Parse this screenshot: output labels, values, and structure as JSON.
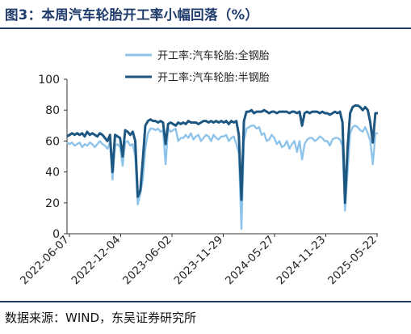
{
  "title": "图3：本周汽车轮胎开工率小幅回落（%）",
  "source": "数据来源：WIND，东吴证券研究所",
  "chart_data": {
    "type": "line",
    "ylim": [
      0,
      100
    ],
    "y_ticks": [
      "0",
      "20",
      "40",
      "60",
      "80",
      "100"
    ],
    "x_ticks": [
      "2022-06-07",
      "2022-12-04",
      "2023-06-02",
      "2023-11-29",
      "2024-05-27",
      "2024-11-23",
      "2025-05-22"
    ],
    "legend_position": "top-right",
    "series": [
      {
        "name": "开工率:汽车轮胎:全钢胎",
        "color": "#8fc4ea",
        "values": [
          59,
          58,
          59,
          57,
          58,
          59,
          56,
          58,
          57,
          59,
          58,
          56,
          58,
          60,
          58,
          57,
          55,
          59,
          35,
          57,
          58,
          56,
          44,
          59,
          60,
          57,
          58,
          50,
          19,
          26,
          35,
          55,
          65,
          68,
          68,
          67,
          68,
          66,
          67,
          45,
          68,
          66,
          67,
          68,
          60,
          62,
          62,
          64,
          62,
          65,
          61,
          63,
          64,
          60,
          62,
          64,
          63,
          60,
          64,
          62,
          61,
          63,
          63,
          64,
          60,
          62,
          63,
          58,
          52,
          3,
          60,
          68,
          69,
          70,
          70,
          68,
          69,
          64,
          65,
          60,
          61,
          64,
          62,
          58,
          60,
          56,
          57,
          60,
          55,
          58,
          60,
          53,
          60,
          48,
          58,
          61,
          62,
          62,
          60,
          61,
          63,
          62,
          60,
          60,
          57,
          61,
          62,
          62,
          61,
          57,
          15,
          40,
          65,
          69,
          70,
          69,
          67,
          66,
          69,
          65,
          60,
          45,
          65,
          65
        ]
      },
      {
        "name": "开工率:汽车轮胎:半钢胎",
        "color": "#1d5680",
        "values": [
          63,
          64,
          65,
          64,
          65,
          64,
          65,
          63,
          66,
          64,
          65,
          64,
          63,
          65,
          64,
          62,
          60,
          64,
          40,
          64,
          63,
          62,
          50,
          67,
          66,
          64,
          66,
          60,
          24,
          28,
          48,
          70,
          73,
          74,
          73,
          73,
          72,
          73,
          72,
          58,
          71,
          72,
          71,
          70,
          72,
          71,
          72,
          71,
          73,
          72,
          72,
          72,
          71,
          72,
          73,
          73,
          72,
          73,
          72,
          73,
          72,
          73,
          72,
          73,
          71,
          73,
          72,
          73,
          64,
          22,
          73,
          79,
          79,
          80,
          78,
          79,
          79,
          79,
          80,
          79,
          78,
          79,
          79,
          78,
          79,
          79,
          79,
          79,
          78,
          79,
          79,
          78,
          79,
          70,
          78,
          79,
          78,
          79,
          79,
          79,
          78,
          79,
          78,
          78,
          77,
          78,
          79,
          78,
          79,
          72,
          20,
          55,
          78,
          82,
          83,
          83,
          82,
          80,
          82,
          80,
          72,
          59,
          78,
          78
        ]
      }
    ]
  }
}
